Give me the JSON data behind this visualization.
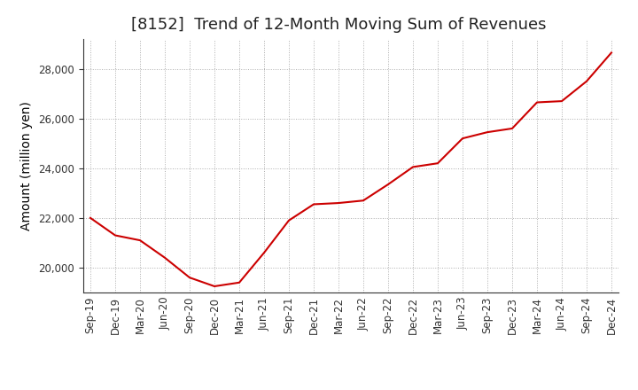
{
  "title": "[8152]  Trend of 12-Month Moving Sum of Revenues",
  "ylabel": "Amount (million yen)",
  "background_color": "#ffffff",
  "grid_color": "#999999",
  "line_color": "#cc0000",
  "x_labels": [
    "Sep-19",
    "Dec-19",
    "Mar-20",
    "Jun-20",
    "Sep-20",
    "Dec-20",
    "Mar-21",
    "Jun-21",
    "Sep-21",
    "Dec-21",
    "Mar-22",
    "Jun-22",
    "Sep-22",
    "Dec-22",
    "Mar-23",
    "Jun-23",
    "Sep-23",
    "Dec-23",
    "Mar-24",
    "Jun-24",
    "Sep-24",
    "Dec-24"
  ],
  "y_values": [
    22000,
    21300,
    21100,
    20400,
    19600,
    19250,
    19400,
    20600,
    21900,
    22550,
    22600,
    22700,
    23350,
    24050,
    24200,
    25200,
    25450,
    25600,
    26650,
    26700,
    27500,
    28650
  ],
  "ylim_min": 19000,
  "ylim_max": 29200,
  "yticks": [
    20000,
    22000,
    24000,
    26000,
    28000
  ],
  "title_fontsize": 13,
  "title_color": "#222222",
  "label_fontsize": 10,
  "tick_fontsize": 8.5
}
